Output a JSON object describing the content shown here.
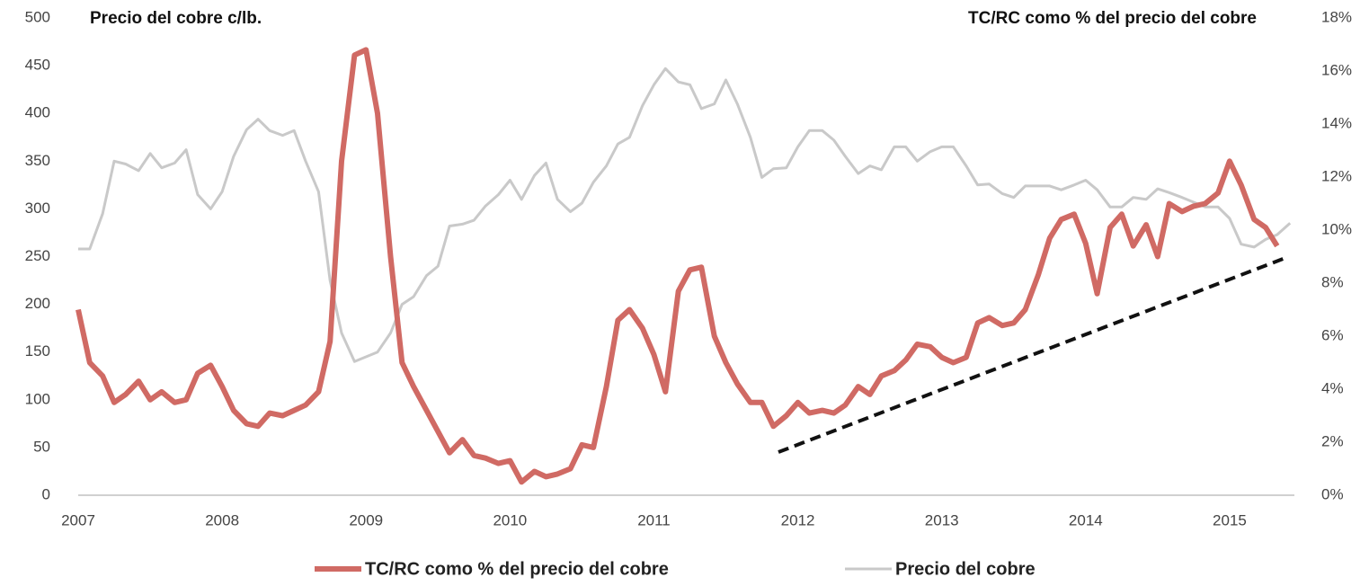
{
  "chart_data": {
    "type": "line",
    "ylabel": "Precio del cobre c/lb.",
    "y2label": "TC/RC como % del precio del cobre",
    "x": [
      2007,
      2007.08,
      2007.17,
      2007.25,
      2007.33,
      2007.42,
      2007.5,
      2007.58,
      2007.67,
      2007.75,
      2007.83,
      2007.92,
      2008,
      2008.08,
      2008.17,
      2008.25,
      2008.33,
      2008.42,
      2008.5,
      2008.58,
      2008.67,
      2008.75,
      2008.83,
      2008.92,
      2009,
      2009.08,
      2009.17,
      2009.25,
      2009.33,
      2009.42,
      2009.5,
      2009.58,
      2009.67,
      2009.75,
      2009.83,
      2009.92,
      2010,
      2010.08,
      2010.17,
      2010.25,
      2010.33,
      2010.42,
      2010.5,
      2010.58,
      2010.67,
      2010.75,
      2010.83,
      2010.92,
      2011,
      2011.08,
      2011.17,
      2011.25,
      2011.33,
      2011.42,
      2011.5,
      2011.58,
      2011.67,
      2011.75,
      2011.83,
      2011.92,
      2012,
      2012.08,
      2012.17,
      2012.25,
      2012.33,
      2012.42,
      2012.5,
      2012.58,
      2012.67,
      2012.75,
      2012.83,
      2012.92,
      2013,
      2013.08,
      2013.17,
      2013.25,
      2013.33,
      2013.42,
      2013.5,
      2013.58,
      2013.67,
      2013.75,
      2013.83,
      2013.92,
      2014,
      2014.08,
      2014.17,
      2014.25,
      2014.33,
      2014.42,
      2014.5,
      2014.58,
      2014.67,
      2014.75,
      2014.83,
      2014.92,
      2015,
      2015.08,
      2015.17,
      2015.25,
      2015.33,
      2015.42
    ],
    "series": [
      {
        "name": "Precio del cobre",
        "color": "#c9c9c9",
        "axis": "y",
        "values": [
          258,
          258,
          295,
          350,
          347,
          340,
          358,
          343,
          348,
          362,
          315,
          300,
          318,
          355,
          383,
          394,
          382,
          377,
          382,
          350,
          318,
          225,
          170,
          140,
          145,
          150,
          170,
          200,
          208,
          230,
          240,
          282,
          284,
          288,
          303,
          315,
          330,
          310,
          335,
          348,
          310,
          297,
          306,
          328,
          345,
          368,
          375,
          408,
          430,
          447,
          433,
          430,
          405,
          410,
          435,
          410,
          375,
          333,
          342,
          343,
          365,
          382,
          382,
          372,
          355,
          337,
          345,
          341,
          365,
          365,
          350,
          360,
          365,
          365,
          345,
          325,
          326,
          316,
          312,
          324,
          324,
          324,
          320,
          325,
          330,
          320,
          302,
          302,
          312,
          310,
          321,
          317,
          312,
          307,
          302,
          302,
          290,
          263,
          260,
          268,
          273,
          285
        ]
      },
      {
        "name": "TC/RC como % del precio del cobre",
        "color": "#d06a64",
        "axis": "y2",
        "values": [
          7.0,
          5.0,
          4.5,
          3.5,
          3.8,
          4.3,
          3.6,
          3.9,
          3.5,
          3.6,
          4.6,
          4.9,
          4.1,
          3.2,
          2.7,
          2.6,
          3.1,
          3.0,
          3.2,
          3.4,
          3.9,
          5.8,
          12.6,
          16.6,
          16.8,
          14.4,
          9.0,
          5.0,
          4.1,
          3.2,
          2.4,
          1.6,
          2.1,
          1.5,
          1.4,
          1.2,
          1.3,
          0.5,
          0.9,
          0.7,
          0.8,
          1.0,
          1.9,
          1.8,
          4.1,
          6.6,
          7.0,
          6.3,
          5.3,
          3.9,
          7.7,
          8.5,
          8.6,
          6.0,
          5.0,
          4.2,
          3.5,
          3.5,
          2.6,
          3.0,
          3.5,
          3.1,
          3.2,
          3.1,
          3.4,
          4.1,
          3.8,
          4.5,
          4.7,
          5.1,
          5.7,
          5.6,
          5.2,
          5.0,
          5.2,
          6.5,
          6.7,
          6.4,
          6.5,
          7.0,
          8.3,
          9.7,
          10.4,
          10.6,
          9.5,
          7.6,
          10.1,
          10.6,
          9.4,
          10.2,
          9.0,
          11.0,
          10.7,
          10.9,
          11.0,
          11.4,
          12.6,
          11.7,
          10.4,
          10.1,
          9.4,
          null
        ]
      }
    ],
    "xlim": [
      2007,
      2015.45
    ],
    "xticks": [
      2007,
      2008,
      2009,
      2010,
      2011,
      2012,
      2013,
      2014,
      2015
    ],
    "ylim": [
      0,
      500
    ],
    "yticks": [
      0,
      50,
      100,
      150,
      200,
      250,
      300,
      350,
      400,
      450,
      500
    ],
    "y2lim": [
      0,
      18
    ],
    "y2ticks": [
      {
        "value": 0,
        "label": "0%"
      },
      {
        "value": 2,
        "label": "2%"
      },
      {
        "value": 4,
        "label": "4%"
      },
      {
        "value": 6,
        "label": "6%"
      },
      {
        "value": 8,
        "label": "8%"
      },
      {
        "value": 10,
        "label": "10%"
      },
      {
        "value": 12,
        "label": "12%"
      },
      {
        "value": 14,
        "label": "14%"
      },
      {
        "value": 16,
        "label": "16%"
      },
      {
        "value": 18,
        "label": "18%"
      }
    ],
    "legend": "bottom"
  }
}
